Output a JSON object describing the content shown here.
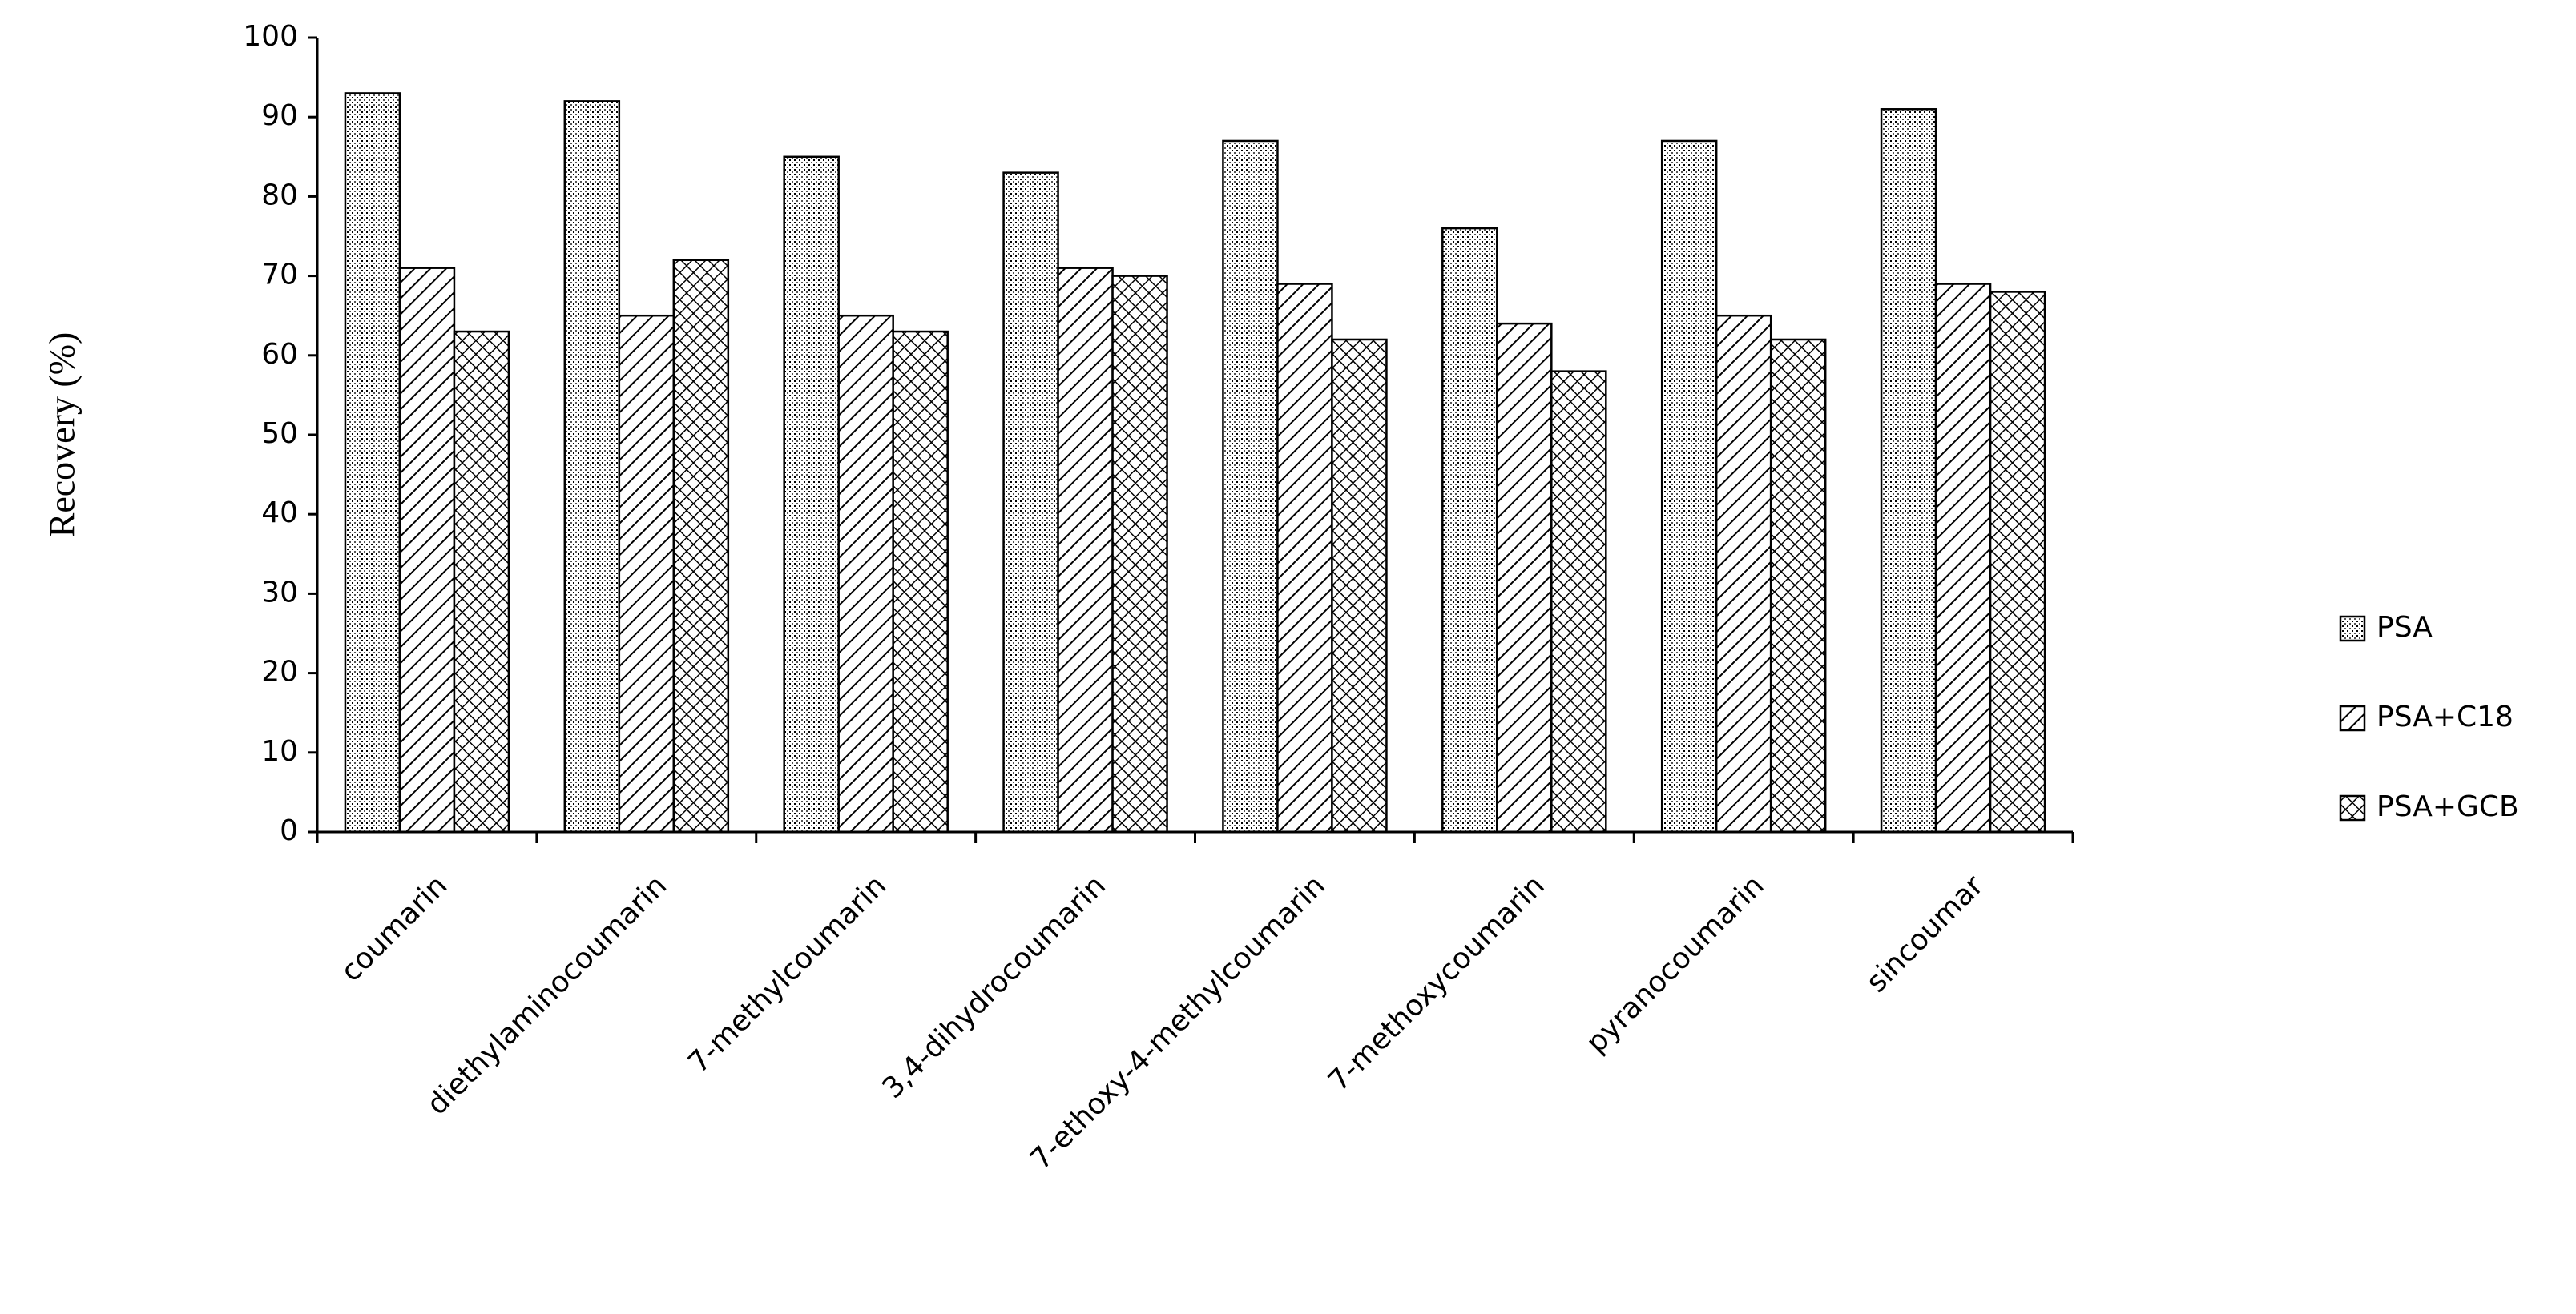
{
  "chart_data": {
    "type": "bar",
    "y_label": "Recovery (%)",
    "categories": [
      "coumarin",
      "diethylaminocoumarin",
      "7-methylcoumarin",
      "3,4-dihydrocoumarin",
      "7-ethoxy-4-methylcoumarin",
      "7-methoxycoumarin",
      "pyranocoumarin",
      "sincoumar"
    ],
    "series": [
      {
        "name": "PSA",
        "color": "#000000",
        "pattern": "dots",
        "values": [
          93,
          92,
          85,
          83,
          87,
          76,
          87,
          91
        ]
      },
      {
        "name": "PSA+C18",
        "color": "#000000",
        "pattern": "diagonal",
        "values": [
          71,
          65,
          65,
          71,
          69,
          64,
          65,
          69
        ]
      },
      {
        "name": "PSA+GCB",
        "color": "#000000",
        "pattern": "crosshatch",
        "values": [
          63,
          72,
          63,
          70,
          62,
          58,
          62,
          68
        ]
      }
    ],
    "ylim": [
      0,
      100
    ],
    "yticks": [
      0,
      10,
      20,
      30,
      40,
      50,
      60,
      70,
      80,
      90,
      100
    ],
    "grid": false,
    "legend": "right"
  }
}
